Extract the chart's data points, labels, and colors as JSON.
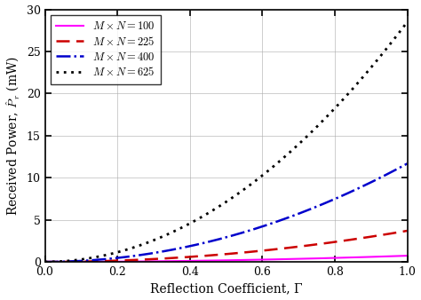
{
  "title": "",
  "xlabel": "Reflection Coefficient, Γ",
  "ylabel": "Received Power, $\\hat{P}_r$ (mW)",
  "xlim": [
    0,
    1
  ],
  "ylim": [
    0,
    30
  ],
  "yticks": [
    0,
    5,
    10,
    15,
    20,
    25,
    30
  ],
  "xticks": [
    0,
    0.2,
    0.4,
    0.6,
    0.8,
    1.0
  ],
  "series": [
    {
      "label": "$M \\times N = 100$",
      "MN": 100,
      "color": "#FF00FF",
      "linestyle": "solid",
      "linewidth": 1.5
    },
    {
      "label": "$M \\times N = 225$",
      "MN": 225,
      "color": "#CC0000",
      "linestyle": "dashed",
      "linewidth": 1.8,
      "dashes": [
        6,
        3
      ]
    },
    {
      "label": "$M \\times N = 400$",
      "MN": 400,
      "color": "#0000CC",
      "linestyle": "dashdot",
      "linewidth": 1.8
    },
    {
      "label": "$M \\times N = 625$",
      "MN": 625,
      "color": "#000000",
      "linestyle": "dotted",
      "linewidth": 2.0,
      "dashes": [
        1,
        2
      ]
    }
  ],
  "scale_factor": 7.296e-08,
  "grid": true,
  "legend_fontsize": 9,
  "axis_fontsize": 10,
  "tick_fontsize": 9
}
